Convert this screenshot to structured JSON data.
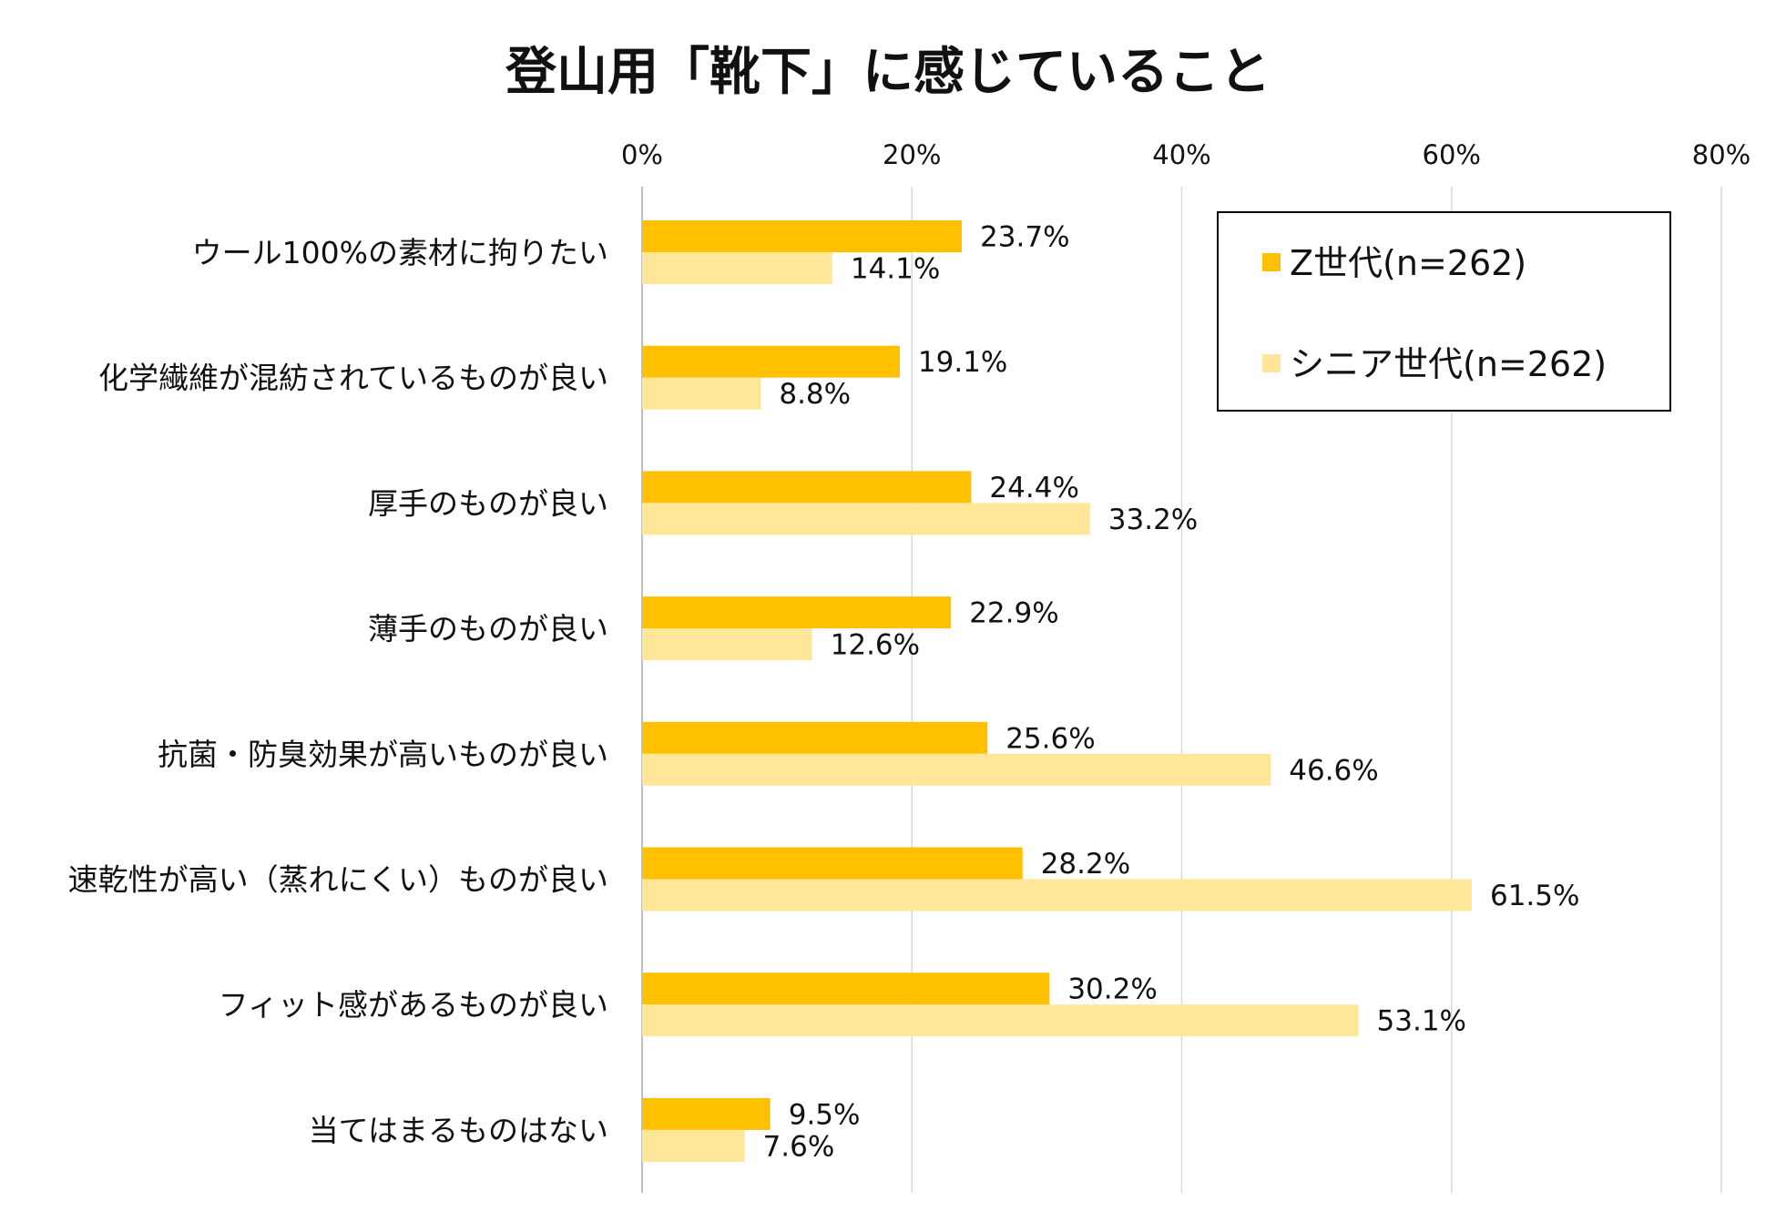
{
  "chart_data": {
    "type": "bar",
    "orientation": "horizontal",
    "title": "登山用「靴下」に感じていること",
    "xlabel": "",
    "ylabel": "",
    "xlim": [
      0,
      80
    ],
    "x_ticks": [
      0,
      20,
      40,
      60,
      80
    ],
    "x_tick_labels": [
      "0%",
      "20%",
      "40%",
      "60%",
      "80%"
    ],
    "tick_position": "top",
    "grid": "vertical",
    "legend_position": "top-right",
    "categories": [
      "ウール100%の素材に拘りたい",
      "化学繊維が混紡されているものが良い",
      "厚手のものが良い",
      "薄手のものが良い",
      "抗菌・防臭効果が高いものが良い",
      "速乾性が高い（蒸れにくい）ものが良い",
      "フィット感があるものが良い",
      "当てはまるものはない"
    ],
    "series": [
      {
        "name": "Z世代(n=262)",
        "color": "#FFC000",
        "values": [
          23.7,
          19.1,
          24.4,
          22.9,
          25.6,
          28.2,
          30.2,
          9.5
        ],
        "labels": [
          "23.7%",
          "19.1%",
          "24.4%",
          "22.9%",
          "25.6%",
          "28.2%",
          "30.2%",
          "9.5%"
        ]
      },
      {
        "name": "シニア世代(n=262)",
        "color": "#FFE699",
        "values": [
          14.1,
          8.8,
          33.2,
          12.6,
          46.6,
          61.5,
          53.1,
          7.6
        ],
        "labels": [
          "14.1%",
          "8.8%",
          "33.2%",
          "12.6%",
          "46.6%",
          "61.5%",
          "53.1%",
          "7.6%"
        ]
      }
    ],
    "colors": {
      "grid": "#D9D9D9",
      "axis": "#BFBFBF",
      "text": "#111111",
      "legend_border": "#000000"
    }
  }
}
